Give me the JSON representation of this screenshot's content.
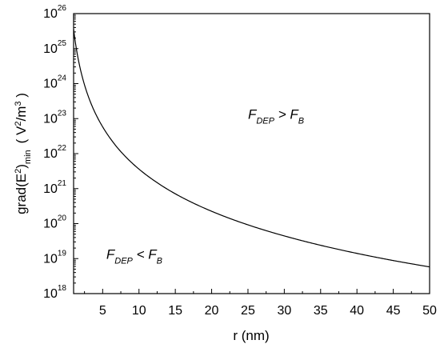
{
  "chart_data": {
    "type": "line",
    "x_scale": "linear",
    "y_scale": "log",
    "xlim": [
      1,
      50
    ],
    "ylim": [
      1e+18,
      1e+26
    ],
    "x_ticks": [
      5,
      10,
      15,
      20,
      25,
      30,
      35,
      40,
      45,
      50
    ],
    "x_tick_labels": [
      "5",
      "10",
      "15",
      "20",
      "25",
      "30",
      "35",
      "40",
      "45",
      "50"
    ],
    "y_ticks": [
      1e+18,
      1e+19,
      1e+20,
      1e+21,
      1e+22,
      1e+23,
      1e+24,
      1e+25,
      1e+26
    ],
    "y_tick_labels": [
      {
        "base": "10",
        "exp": "18"
      },
      {
        "base": "10",
        "exp": "19"
      },
      {
        "base": "10",
        "exp": "20"
      },
      {
        "base": "10",
        "exp": "21"
      },
      {
        "base": "10",
        "exp": "22"
      },
      {
        "base": "10",
        "exp": "23"
      },
      {
        "base": "10",
        "exp": "24"
      },
      {
        "base": "10",
        "exp": "25"
      },
      {
        "base": "10",
        "exp": "26"
      }
    ],
    "xlabel": "r (nm)",
    "ylabel": {
      "main": "grad(E",
      "sup1": "2",
      "close": ")",
      "sub": "min",
      "units_open": "( V",
      "sup2": "2",
      "units_mid": "/m",
      "sup3": "3",
      "units_close": " )"
    },
    "annotations": [
      {
        "main": "F",
        "sub": "DEP",
        "op": " > ",
        "main2": "F",
        "sub2": "B",
        "x": 25,
        "y": 1e+23
      },
      {
        "main": "F",
        "sub": "DEP",
        "op": " < ",
        "main2": "F",
        "sub2": "B",
        "x": 5.5,
        "y": 1e+19
      }
    ],
    "grid": false,
    "legend": false,
    "series": [
      {
        "x": [
          1,
          1.5,
          2,
          3,
          4,
          5,
          6,
          7,
          8,
          10,
          12,
          15,
          20,
          25,
          30,
          35,
          40,
          45,
          50
        ],
        "y": [
          3.6e+25,
          7.1e+24,
          2.25e+24,
          4.45e+23,
          1.41e+23,
          5.8e+22,
          2.8e+22,
          1.5e+22,
          8.8e+21,
          3.6e+21,
          1.74e+21,
          7.1e+20,
          2.25e+20,
          9.2e+19,
          4.45e+19,
          2.4e+19,
          1.41e+19,
          8.8e+18,
          5.8e+18
        ]
      }
    ]
  }
}
